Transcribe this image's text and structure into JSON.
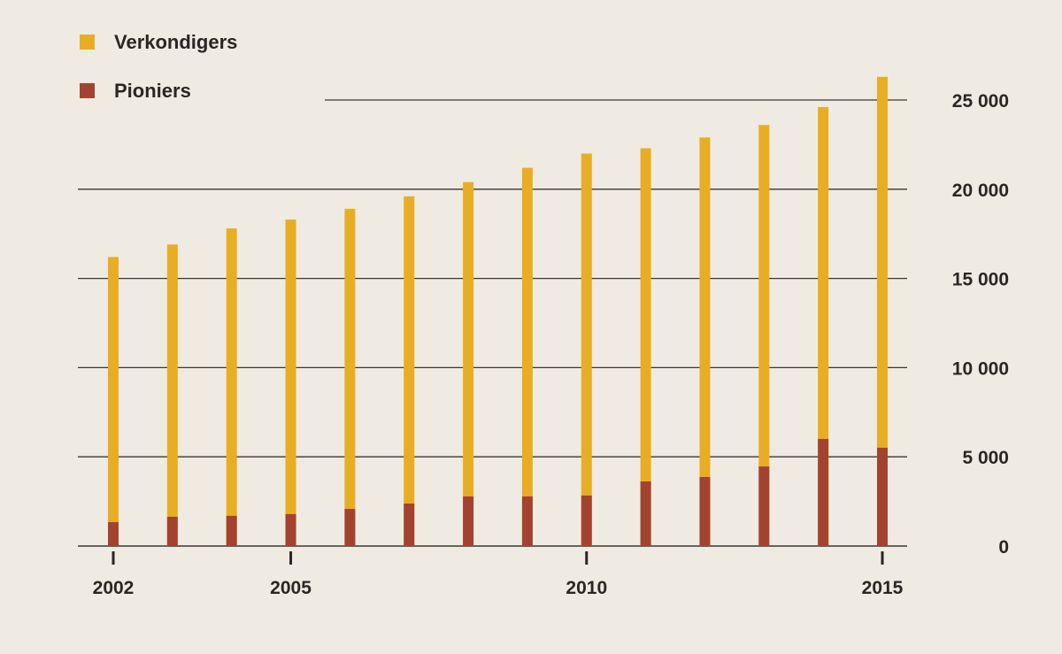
{
  "chart_data": {
    "type": "bar",
    "title": "",
    "xlabel": "",
    "ylabel": "",
    "categories": [
      2002,
      2003,
      2004,
      2005,
      2006,
      2007,
      2008,
      2009,
      2010,
      2011,
      2012,
      2013,
      2014,
      2015
    ],
    "x_tick_labels": [
      "2002",
      "2005",
      "2010",
      "2015"
    ],
    "y_tick_labels": [
      "0",
      "5 000",
      "10 000",
      "15 000",
      "20 000",
      "25 000"
    ],
    "y_ticks": [
      0,
      5000,
      10000,
      15000,
      20000,
      25000
    ],
    "ylim": [
      0,
      27000
    ],
    "y_axis_side": "right",
    "grid": true,
    "overlay": true,
    "legend_position": "top-left",
    "series": [
      {
        "name": "Verkondigers",
        "color": "#e9ad24",
        "values": [
          16200,
          16900,
          17800,
          18300,
          18900,
          19600,
          20400,
          21200,
          22000,
          22300,
          22900,
          23600,
          24600,
          26300
        ]
      },
      {
        "name": "Pioniers",
        "color": "#a3432f",
        "values": [
          1340,
          1640,
          1690,
          1790,
          2080,
          2380,
          2780,
          2780,
          2830,
          3620,
          3870,
          4460,
          6000,
          5510
        ]
      }
    ]
  }
}
